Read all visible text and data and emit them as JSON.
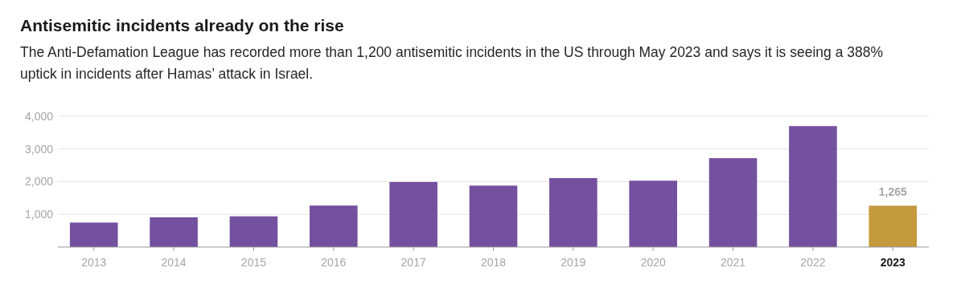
{
  "chart_data": {
    "type": "bar",
    "title": "Antisemitic incidents already on the rise",
    "subtitle": "The Anti-Defamation League has recorded more than 1,200 antisemitic incidents in the US through May 2023 and says it is seeing a 388% uptick in incidents after Hamas’ attack in Israel.",
    "categories": [
      "2013",
      "2014",
      "2015",
      "2016",
      "2017",
      "2018",
      "2019",
      "2020",
      "2021",
      "2022",
      "2023"
    ],
    "values": [
      750,
      910,
      940,
      1270,
      1990,
      1880,
      2110,
      2030,
      2720,
      3700,
      1265
    ],
    "colors": [
      "#74519f",
      "#74519f",
      "#74519f",
      "#74519f",
      "#74519f",
      "#74519f",
      "#74519f",
      "#74519f",
      "#74519f",
      "#74519f",
      "#c39a3e"
    ],
    "value_labels": [
      null,
      null,
      null,
      null,
      null,
      null,
      null,
      null,
      null,
      null,
      "1,265"
    ],
    "ylim": [
      0,
      4000
    ],
    "yticks": [
      {
        "value": 0,
        "label": null
      },
      {
        "value": 1000,
        "label": "1,000"
      },
      {
        "value": 2000,
        "label": "2,000"
      },
      {
        "value": 3000,
        "label": "3,000"
      },
      {
        "value": 4000,
        "label": "4,000"
      }
    ],
    "grid": "y"
  }
}
